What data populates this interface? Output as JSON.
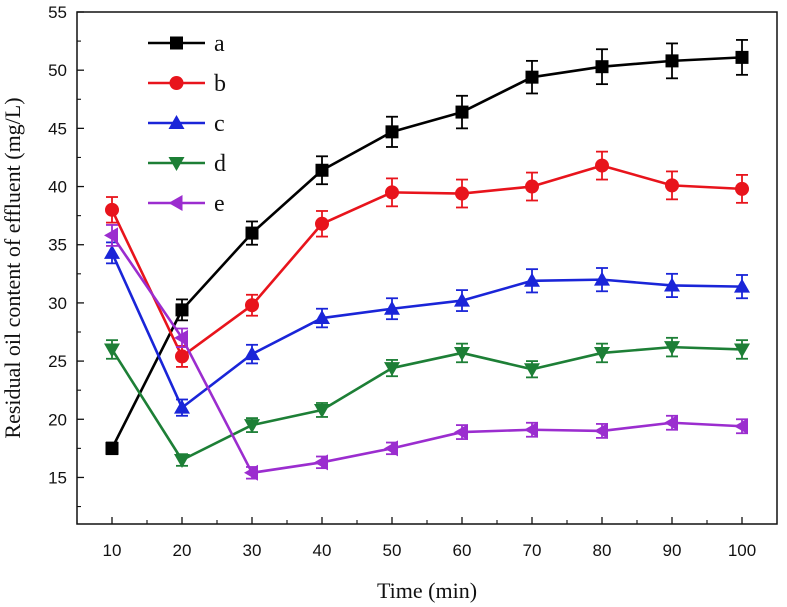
{
  "chart_data": {
    "type": "line",
    "title": "",
    "xlabel": "Time (min)",
    "ylabel": "Residual oil content of effluent (mg/L)",
    "xlim": [
      5,
      105
    ],
    "ylim": [
      11,
      55
    ],
    "xticks": [
      10,
      20,
      30,
      40,
      50,
      60,
      70,
      80,
      90,
      100
    ],
    "yticks": [
      15,
      20,
      25,
      30,
      35,
      40,
      45,
      50,
      55
    ],
    "grid": false,
    "legend_position": "top-left",
    "x": [
      10,
      20,
      30,
      40,
      50,
      60,
      70,
      80,
      90,
      100
    ],
    "series": [
      {
        "name": "a",
        "color": "#000000",
        "marker": "square",
        "values": [
          17.5,
          29.4,
          36.0,
          41.4,
          44.7,
          46.4,
          49.4,
          50.3,
          50.8,
          51.1
        ],
        "errors": [
          0.5,
          0.9,
          1.0,
          1.2,
          1.3,
          1.4,
          1.4,
          1.5,
          1.5,
          1.5
        ]
      },
      {
        "name": "b",
        "color": "#e8141c",
        "marker": "circle",
        "values": [
          38.0,
          25.4,
          29.8,
          36.8,
          39.5,
          39.4,
          40.0,
          41.8,
          40.1,
          39.8
        ],
        "errors": [
          1.1,
          0.9,
          0.9,
          1.1,
          1.2,
          1.2,
          1.2,
          1.2,
          1.2,
          1.2
        ]
      },
      {
        "name": "c",
        "color": "#1a25d8",
        "marker": "triangle-up",
        "values": [
          34.3,
          21.0,
          25.6,
          28.7,
          29.5,
          30.2,
          31.9,
          32.0,
          31.5,
          31.4
        ],
        "errors": [
          0.9,
          0.7,
          0.8,
          0.8,
          0.9,
          0.9,
          1.0,
          1.0,
          1.0,
          1.0
        ]
      },
      {
        "name": "d",
        "color": "#1d7f36",
        "marker": "triangle-down",
        "values": [
          26.0,
          16.5,
          19.5,
          20.8,
          24.4,
          25.7,
          24.3,
          25.7,
          26.2,
          26.0
        ],
        "errors": [
          0.8,
          0.5,
          0.6,
          0.6,
          0.7,
          0.8,
          0.7,
          0.8,
          0.8,
          0.8
        ]
      },
      {
        "name": "e",
        "color": "#9b2dcf",
        "marker": "triangle-left",
        "values": [
          35.8,
          27.0,
          15.4,
          16.3,
          17.5,
          18.9,
          19.1,
          19.0,
          19.7,
          19.4
        ],
        "errors": [
          0.9,
          0.8,
          0.5,
          0.5,
          0.5,
          0.6,
          0.6,
          0.6,
          0.6,
          0.6
        ]
      }
    ]
  }
}
